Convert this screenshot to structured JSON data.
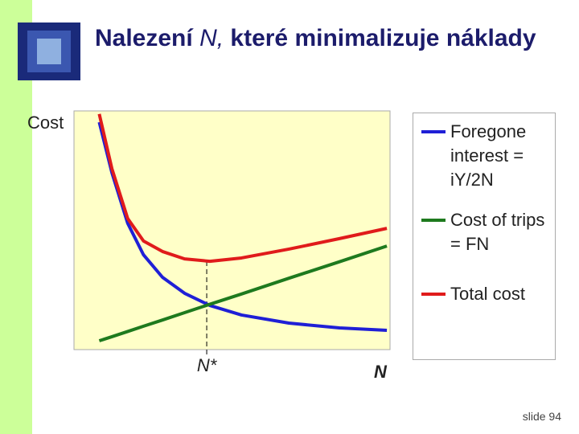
{
  "header": {
    "title_parts": [
      "Nalezení ",
      "N,",
      " které minimalizuje náklady"
    ]
  },
  "chart_data": {
    "type": "line",
    "ylabel": "Cost",
    "xlabel": "N",
    "x": [
      0.8,
      1.2,
      1.7,
      2.2,
      2.8,
      3.5,
      4.3,
      5.3,
      6.8,
      8.4,
      9.9
    ],
    "xlim": [
      0,
      10
    ],
    "ylim": [
      0,
      10
    ],
    "series": [
      {
        "name": "Foregone interest = iY/2N",
        "color": "#1f1fd6",
        "values": [
          9.53,
          7.41,
          5.29,
          3.97,
          3.03,
          2.36,
          1.85,
          1.45,
          1.11,
          0.91,
          0.81
        ]
      },
      {
        "name": "Cost of trips = FN",
        "color": "#1e7a1e",
        "values": [
          0.37,
          0.54,
          0.76,
          0.98,
          1.24,
          1.55,
          1.9,
          2.33,
          2.99,
          3.68,
          4.34
        ]
      },
      {
        "name": "Total cost",
        "color": "#e01b1b",
        "values": [
          9.87,
          7.58,
          5.49,
          4.55,
          4.11,
          3.8,
          3.7,
          3.84,
          4.21,
          4.65,
          5.08
        ]
      }
    ],
    "annotations": [
      {
        "text": "N*",
        "x": 4.2
      }
    ]
  },
  "footer": {
    "slide": "slide 94"
  }
}
